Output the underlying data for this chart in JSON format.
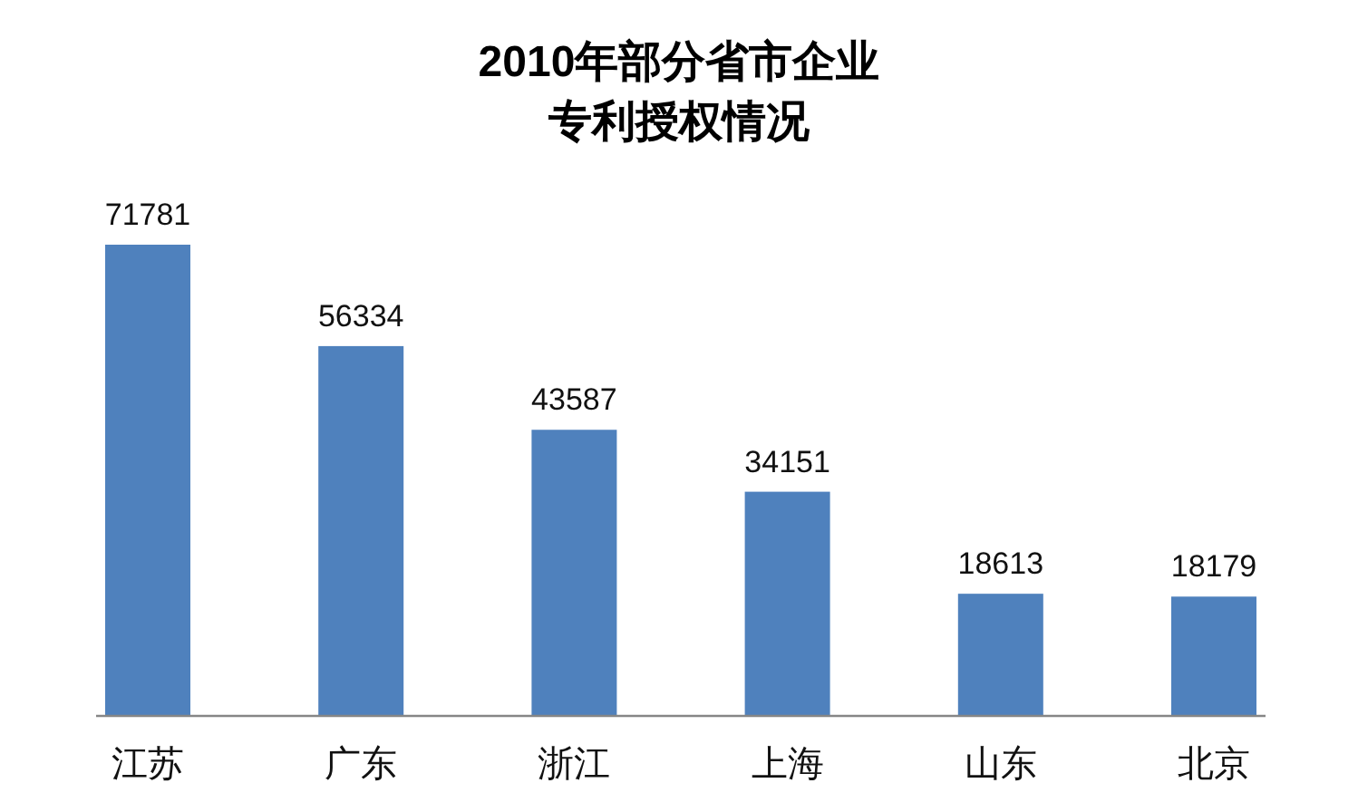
{
  "chart_data": {
    "type": "bar",
    "title": "2010年部分省市企业专利授权情况",
    "categories": [
      "江苏",
      "广东",
      "浙江",
      "上海",
      "山东",
      "北京"
    ],
    "values": [
      71781,
      56334,
      43587,
      34151,
      18613,
      18179
    ],
    "color": "#4f81bd",
    "data_labels": true
  }
}
